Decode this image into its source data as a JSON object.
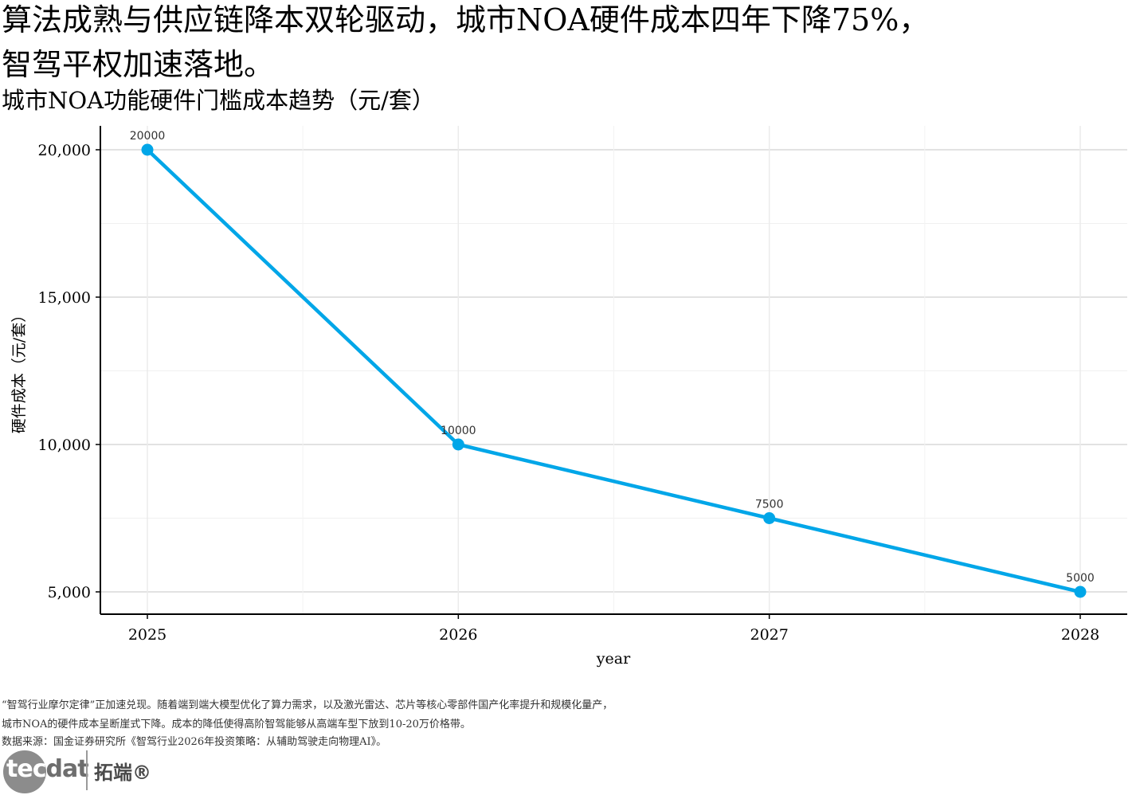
{
  "headline": {
    "line1": "算法成熟与供应链降本双轮驱动，城市NOA硬件成本四年下降75%，",
    "line2": "智驾平权加速落地。"
  },
  "chart_data": {
    "type": "line",
    "title": "城市NOA功能硬件门槛成本趋势（元/套）",
    "xlabel": "year",
    "ylabel": "硬件成本（元/套）",
    "x": [
      2025,
      2026,
      2027,
      2028
    ],
    "x_tick_labels": [
      "2025",
      "2026",
      "2027",
      "2028"
    ],
    "y_tick_values": [
      5000,
      10000,
      15000,
      20000
    ],
    "y_tick_labels": [
      "5,000",
      "10,000",
      "15,000",
      "20,000"
    ],
    "series": [
      {
        "values": [
          20000,
          10000,
          7500,
          5000
        ],
        "labels": [
          "20000",
          "10000",
          "7500",
          "5000"
        ],
        "color": "#00a6e8"
      }
    ],
    "grid": true
  },
  "footnotes": {
    "line1": "“智驾行业摩尔定律”正加速兑现。随着端到端大模型优化了算力需求，以及激光雷达、芯片等核心零部件国产化率提升和规模化量产，",
    "line2": "城市NOA的硬件成本呈断崖式下降。成本的降低使得高阶智驾能够从高端车型下放到10-20万价格带。",
    "line3": "数据来源：国金证券研究所《智驾行业2026年投资策略：从辅助驾驶走向物理AI》。"
  },
  "logo": {
    "brand": "tec",
    "brand2": "dat",
    "cn": "拓端®"
  }
}
